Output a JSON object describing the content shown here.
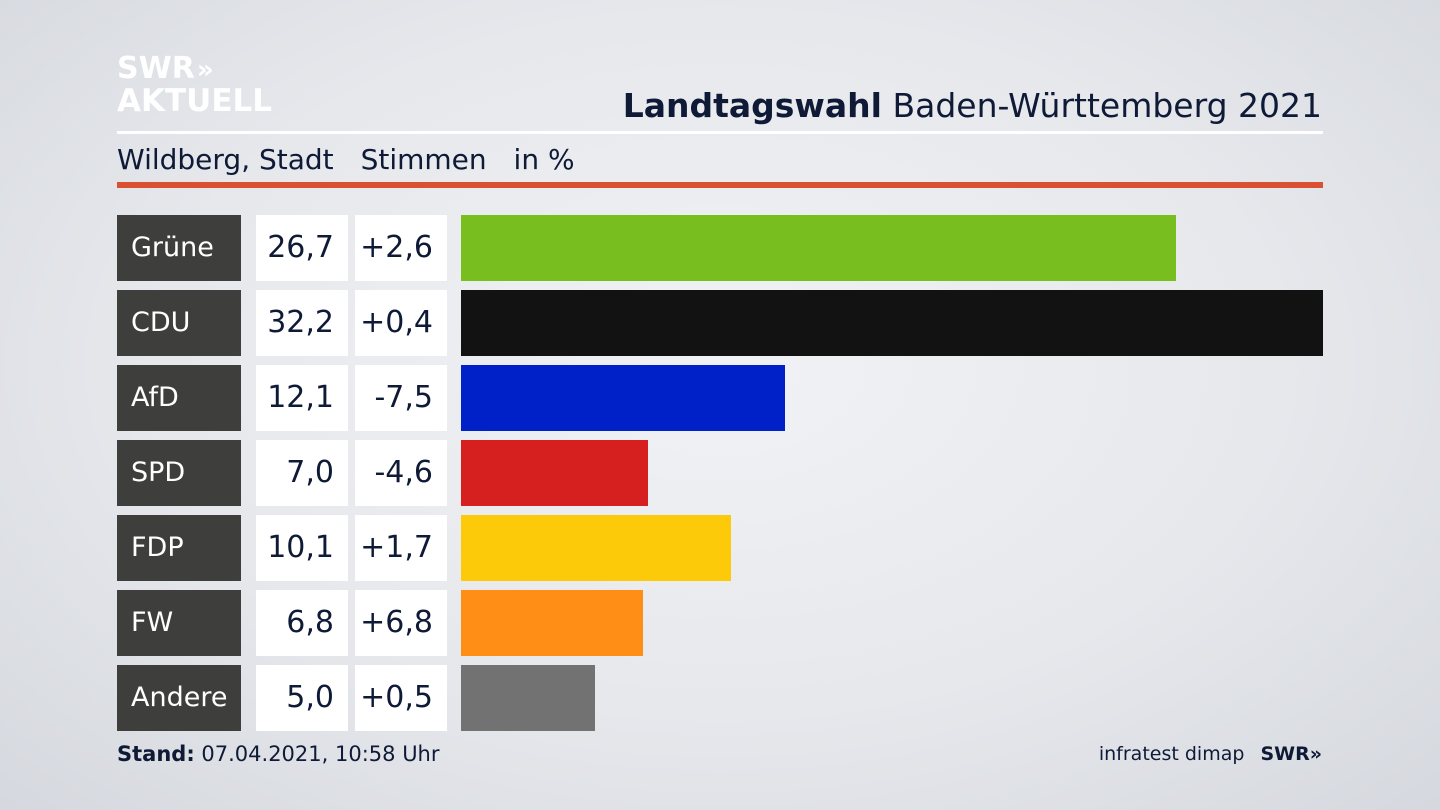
{
  "logo": {
    "line1": "SWR",
    "arrows": "»",
    "line2": "AKTUELL"
  },
  "header": {
    "title_bold": "Landtagswahl",
    "title_rest": "Baden-Württemberg 2021"
  },
  "subtitle": {
    "place": "Wildberg, Stadt",
    "metric": "Stimmen",
    "unit": "in %"
  },
  "colors": {
    "accent_rule": "#d95033",
    "label_bg": "#3e3e3c"
  },
  "chart_data": {
    "type": "bar",
    "orientation": "horizontal",
    "categories": [
      "Grüne",
      "CDU",
      "AfD",
      "SPD",
      "FDP",
      "FW",
      "Andere"
    ],
    "values": [
      26.7,
      32.2,
      12.1,
      7.0,
      10.1,
      6.8,
      5.0
    ],
    "value_labels": [
      "26,7",
      "32,2",
      "12,1",
      "7,0",
      "10,1",
      "6,8",
      "5,0"
    ],
    "change_labels": [
      "+2,6",
      "+0,4",
      "-7,5",
      "-4,6",
      "+1,7",
      "+6,8",
      "+0,5"
    ],
    "changes": [
      2.6,
      0.4,
      -7.5,
      -4.6,
      1.7,
      6.8,
      0.5
    ],
    "colors": [
      "#78be1e",
      "#121212",
      "#0020c8",
      "#d62020",
      "#fdca09",
      "#fe8e15",
      "#727272"
    ],
    "xlim": [
      0,
      32.2
    ],
    "grid": false
  },
  "footer": {
    "stand_label": "Stand:",
    "stand_value": "07.04.2021, 10:58 Uhr",
    "source": "infratest dimap",
    "brand": "SWR»"
  }
}
